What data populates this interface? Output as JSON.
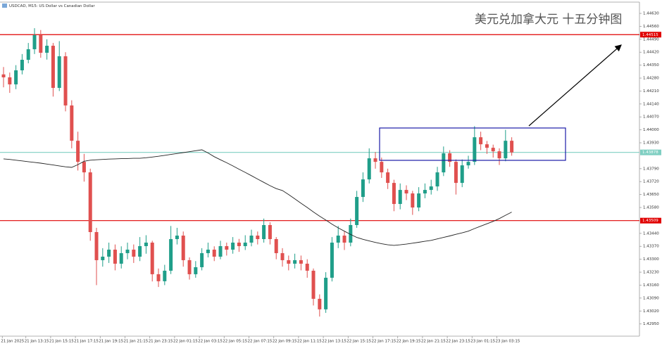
{
  "chart_data": {
    "type": "candlestick",
    "title": "USDCAD, M15:  US Dollar vs Canadian Dollar",
    "annotation": "美元兑加拿大元 十五分钟图",
    "up_color": "#1f9e89",
    "down_color": "#e0504f",
    "open": [
      1.443,
      1.44284,
      1.44246,
      1.44322,
      1.44379,
      1.44436,
      1.44512,
      1.44417,
      1.44455,
      1.44227,
      1.44398,
      1.44132,
      1.43941,
      1.43827,
      1.4377,
      1.43447,
      1.43295,
      1.43314,
      1.43352,
      1.43276,
      1.43333,
      1.43352,
      1.43314,
      1.43371,
      1.4339,
      1.43219,
      1.43181,
      1.43238,
      1.43409,
      1.43428,
      1.43295,
      1.43219,
      1.43257,
      1.43333,
      1.43352,
      1.43314,
      1.43371,
      1.43352,
      1.4339,
      1.43371,
      1.4339,
      1.43428,
      1.43409,
      1.43485,
      1.43409,
      1.43333,
      1.43295,
      1.43276,
      1.43295,
      1.43276,
      1.43238,
      1.43086,
      1.43029,
      1.432,
      1.4339,
      1.43428,
      1.4339,
      1.43485,
      1.43637,
      1.43732,
      1.43846,
      1.43827,
      1.4377,
      1.43713,
      1.43599,
      1.43675,
      1.43656,
      1.4358,
      1.43656,
      1.43675,
      1.43694,
      1.4377,
      1.43873,
      1.43827,
      1.43713,
      1.43808,
      1.43827,
      1.4396,
      1.43922,
      1.43903,
      1.43884,
      1.43846,
      1.43941
    ],
    "high": [
      1.4434,
      1.4431,
      1.4435,
      1.4441,
      1.4447,
      1.4455,
      1.4454,
      1.4449,
      1.4447,
      1.4448,
      1.4442,
      1.4416,
      1.4399,
      1.4387,
      1.4379,
      1.4347,
      1.4336,
      1.4339,
      1.4338,
      1.4337,
      1.4339,
      1.4338,
      1.4342,
      1.4343,
      1.434,
      1.4325,
      1.4327,
      1.4348,
      1.4347,
      1.4345,
      1.4331,
      1.4329,
      1.4336,
      1.4339,
      1.4337,
      1.434,
      1.4339,
      1.4342,
      1.4341,
      1.4343,
      1.4346,
      1.4345,
      1.4352,
      1.435,
      1.4342,
      1.4336,
      1.4332,
      1.4333,
      1.4332,
      1.433,
      1.4325,
      1.4311,
      1.4323,
      1.4342,
      1.4348,
      1.4345,
      1.4352,
      1.4367,
      1.4377,
      1.439,
      1.4388,
      1.4385,
      1.4379,
      1.4373,
      1.4371,
      1.437,
      1.4367,
      1.4369,
      1.4371,
      1.4373,
      1.438,
      1.4391,
      1.4389,
      1.4384,
      1.4384,
      1.4386,
      1.4402,
      1.4399,
      1.4394,
      1.4392,
      1.439,
      1.44,
      1.4396
    ],
    "low": [
      1.4423,
      1.442,
      1.4422,
      1.443,
      1.4436,
      1.4441,
      1.4439,
      1.4438,
      1.4418,
      1.4421,
      1.441,
      1.439,
      1.4378,
      1.4372,
      1.434,
      1.4316,
      1.4326,
      1.4328,
      1.4324,
      1.4325,
      1.433,
      1.4328,
      1.4329,
      1.4333,
      1.4318,
      1.4315,
      1.4316,
      1.4322,
      1.4338,
      1.4326,
      1.4319,
      1.432,
      1.4324,
      1.4331,
      1.4329,
      1.433,
      1.4332,
      1.4333,
      1.4334,
      1.4335,
      1.4337,
      1.4338,
      1.4339,
      1.4338,
      1.433,
      1.4326,
      1.4324,
      1.4325,
      1.4324,
      1.432,
      1.4305,
      1.4299,
      1.4301,
      1.4318,
      1.4336,
      1.4335,
      1.4337,
      1.4347,
      1.4361,
      1.4371,
      1.4379,
      1.4374,
      1.4368,
      1.4356,
      1.4357,
      1.4362,
      1.4354,
      1.4356,
      1.4363,
      1.4365,
      1.4367,
      1.4375,
      1.438,
      1.4365,
      1.4369,
      1.4379,
      1.4381,
      1.4389,
      1.4387,
      1.4385,
      1.4381,
      1.4383,
      1.4386
    ],
    "close": [
      1.44284,
      1.44246,
      1.44322,
      1.44379,
      1.44436,
      1.44512,
      1.44417,
      1.44455,
      1.44227,
      1.44398,
      1.44132,
      1.43941,
      1.43827,
      1.4377,
      1.43447,
      1.43295,
      1.43314,
      1.43352,
      1.43276,
      1.43333,
      1.43352,
      1.43314,
      1.43371,
      1.4339,
      1.43219,
      1.43181,
      1.43238,
      1.43409,
      1.43428,
      1.43295,
      1.43219,
      1.43257,
      1.43333,
      1.43352,
      1.43314,
      1.43371,
      1.43352,
      1.4339,
      1.43371,
      1.4339,
      1.43428,
      1.43409,
      1.43485,
      1.43409,
      1.43333,
      1.43295,
      1.43276,
      1.43295,
      1.43276,
      1.43238,
      1.43086,
      1.43029,
      1.432,
      1.4339,
      1.43428,
      1.4339,
      1.43485,
      1.43637,
      1.43732,
      1.43846,
      1.43827,
      1.4377,
      1.43713,
      1.43599,
      1.43675,
      1.43656,
      1.4358,
      1.43656,
      1.43675,
      1.43694,
      1.4377,
      1.43873,
      1.43827,
      1.43713,
      1.43808,
      1.43827,
      1.4396,
      1.43922,
      1.43903,
      1.43884,
      1.43846,
      1.43941,
      1.43878
    ],
    "ma": {
      "color": "#222222",
      "values": [
        1.43843,
        1.4384,
        1.43836,
        1.43832,
        1.43828,
        1.43824,
        1.4382,
        1.43815,
        1.4381,
        1.43805,
        1.438,
        1.43797,
        1.43812,
        1.4383,
        1.43836,
        1.43838,
        1.4384,
        1.43842,
        1.43843,
        1.43844,
        1.43845,
        1.43846,
        1.43846,
        1.43849,
        1.43853,
        1.43857,
        1.43862,
        1.43867,
        1.43872,
        1.43877,
        1.43882,
        1.43887,
        1.43892,
        1.43875,
        1.43855,
        1.43838,
        1.43822,
        1.43805,
        1.43787,
        1.4377,
        1.43752,
        1.43734,
        1.43716,
        1.43698,
        1.43682,
        1.43672,
        1.4365,
        1.43627,
        1.43603,
        1.4358,
        1.43556,
        1.43533,
        1.43512,
        1.4349,
        1.4347,
        1.43452,
        1.43434,
        1.43418,
        1.43408,
        1.43399,
        1.43391,
        1.43384,
        1.43378,
        1.43375,
        1.43378,
        1.43382,
        1.43387,
        1.43392,
        1.43397,
        1.43402,
        1.4341,
        1.43418,
        1.43426,
        1.43435,
        1.43443,
        1.43452,
        1.43466,
        1.43479,
        1.43492,
        1.43505,
        1.4352,
        1.43538,
        1.43555
      ]
    },
    "hlines": [
      {
        "value": 1.44515,
        "color": "#e00000"
      },
      {
        "value": 1.43509,
        "color": "#e00000"
      },
      {
        "value": 1.43878,
        "color": "#7fcfc2"
      }
    ],
    "ylim": [
      1.42884,
      1.44691
    ],
    "yticks": [
      {
        "value": 1.4463,
        "label": "1.44630"
      },
      {
        "value": 1.4456,
        "label": "1.44560"
      },
      {
        "value": 1.4449,
        "label": "1.44490"
      },
      {
        "value": 1.4442,
        "label": "1.44420"
      },
      {
        "value": 1.4435,
        "label": "1.44350"
      },
      {
        "value": 1.4428,
        "label": "1.44280"
      },
      {
        "value": 1.4421,
        "label": "1.44210"
      },
      {
        "value": 1.4414,
        "label": "1.44140"
      },
      {
        "value": 1.4407,
        "label": "1.44070"
      },
      {
        "value": 1.44,
        "label": "1.44000"
      },
      {
        "value": 1.4393,
        "label": "1.43930"
      },
      {
        "value": 1.4379,
        "label": "1.43790"
      },
      {
        "value": 1.4372,
        "label": "1.43720"
      },
      {
        "value": 1.4365,
        "label": "1.43650"
      },
      {
        "value": 1.4358,
        "label": "1.43580"
      },
      {
        "value": 1.4344,
        "label": "1.43440"
      },
      {
        "value": 1.4337,
        "label": "1.43370"
      },
      {
        "value": 1.433,
        "label": "1.43300"
      },
      {
        "value": 1.4323,
        "label": "1.43230"
      },
      {
        "value": 1.4316,
        "label": "1.43160"
      },
      {
        "value": 1.4309,
        "label": "1.43090"
      },
      {
        "value": 1.4302,
        "label": "1.43020"
      },
      {
        "value": 1.4295,
        "label": "1.42950"
      }
    ],
    "xlim": [
      -0.57,
      102.61
    ],
    "xticks": [
      {
        "value": -0.2,
        "label": "21 Jan 2025"
      },
      {
        "value": 3.6,
        "label": "21 Jan 13:15"
      },
      {
        "value": 7.6,
        "label": "21 Jan 15:15"
      },
      {
        "value": 11.6,
        "label": "21 Jan 17:15"
      },
      {
        "value": 15.6,
        "label": "21 Jan 19:15"
      },
      {
        "value": 19.6,
        "label": "21 Jan 21:15"
      },
      {
        "value": 23.6,
        "label": "21 Jan 23:15"
      },
      {
        "value": 27.6,
        "label": "22 Jan 01:15"
      },
      {
        "value": 31.6,
        "label": "22 Jan 03:15"
      },
      {
        "value": 35.6,
        "label": "22 Jan 05:15"
      },
      {
        "value": 39.6,
        "label": "22 Jan 07:15"
      },
      {
        "value": 43.6,
        "label": "22 Jan 09:15"
      },
      {
        "value": 47.6,
        "label": "22 Jan 11:15"
      },
      {
        "value": 51.6,
        "label": "22 Jan 13:15"
      },
      {
        "value": 55.6,
        "label": "22 Jan 15:15"
      },
      {
        "value": 59.6,
        "label": "22 Jan 17:15"
      },
      {
        "value": 63.6,
        "label": "22 Jan 19:15"
      },
      {
        "value": 67.6,
        "label": "22 Jan 21:15"
      },
      {
        "value": 71.6,
        "label": "22 Jan 23:15"
      },
      {
        "value": 75.6,
        "label": "23 Jan 01:15"
      },
      {
        "value": 79.6,
        "label": "23 Jan 03:15"
      }
    ]
  }
}
